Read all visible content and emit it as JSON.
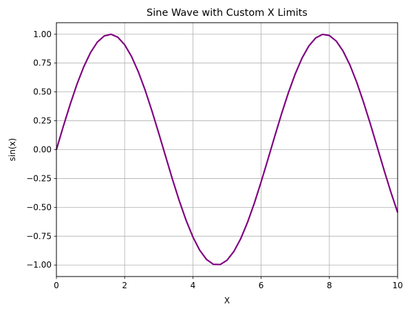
{
  "chart_data": {
    "type": "line",
    "title": "Sine Wave with Custom X Limits",
    "xlabel": "X",
    "ylabel": "sin(x)",
    "xlim": [
      0,
      10
    ],
    "ylim": [
      -1.1,
      1.1
    ],
    "grid": true,
    "line_color": "#800080",
    "x_ticks": [
      0,
      2,
      4,
      6,
      8,
      10
    ],
    "x_tick_labels": [
      "0",
      "2",
      "4",
      "6",
      "8",
      "10"
    ],
    "y_ticks": [
      -1.0,
      -0.75,
      -0.5,
      -0.25,
      0.0,
      0.25,
      0.5,
      0.75,
      1.0
    ],
    "y_tick_labels": [
      "−1.00",
      "−0.75",
      "−0.50",
      "−0.25",
      "0.00",
      "0.25",
      "0.50",
      "0.75",
      "1.00"
    ],
    "series": [
      {
        "x": [
          0.0,
          0.2,
          0.4,
          0.6,
          0.8,
          1.0,
          1.2,
          1.4,
          1.6,
          1.8,
          2.0,
          2.2,
          2.4,
          2.6,
          2.8,
          3.0,
          3.2,
          3.4,
          3.6,
          3.8,
          4.0,
          4.2,
          4.4,
          4.6,
          4.8,
          5.0,
          5.2,
          5.4,
          5.6,
          5.8,
          6.0,
          6.2,
          6.4,
          6.6,
          6.8,
          7.0,
          7.2,
          7.4,
          7.6,
          7.8,
          8.0,
          8.2,
          8.4,
          8.6,
          8.8,
          9.0,
          9.2,
          9.4,
          9.6,
          9.8,
          10.0
        ],
        "y": [
          0.0,
          0.199,
          0.389,
          0.565,
          0.717,
          0.841,
          0.932,
          0.985,
          1.0,
          0.974,
          0.909,
          0.808,
          0.675,
          0.516,
          0.335,
          0.141,
          -0.058,
          -0.256,
          -0.443,
          -0.612,
          -0.757,
          -0.872,
          -0.952,
          -0.994,
          -0.996,
          -0.959,
          -0.883,
          -0.773,
          -0.631,
          -0.465,
          -0.279,
          -0.083,
          0.117,
          0.312,
          0.494,
          0.657,
          0.794,
          0.899,
          0.968,
          0.999,
          0.989,
          0.941,
          0.855,
          0.735,
          0.585,
          0.412,
          0.223,
          0.025,
          -0.175,
          -0.366,
          -0.544
        ]
      }
    ]
  }
}
